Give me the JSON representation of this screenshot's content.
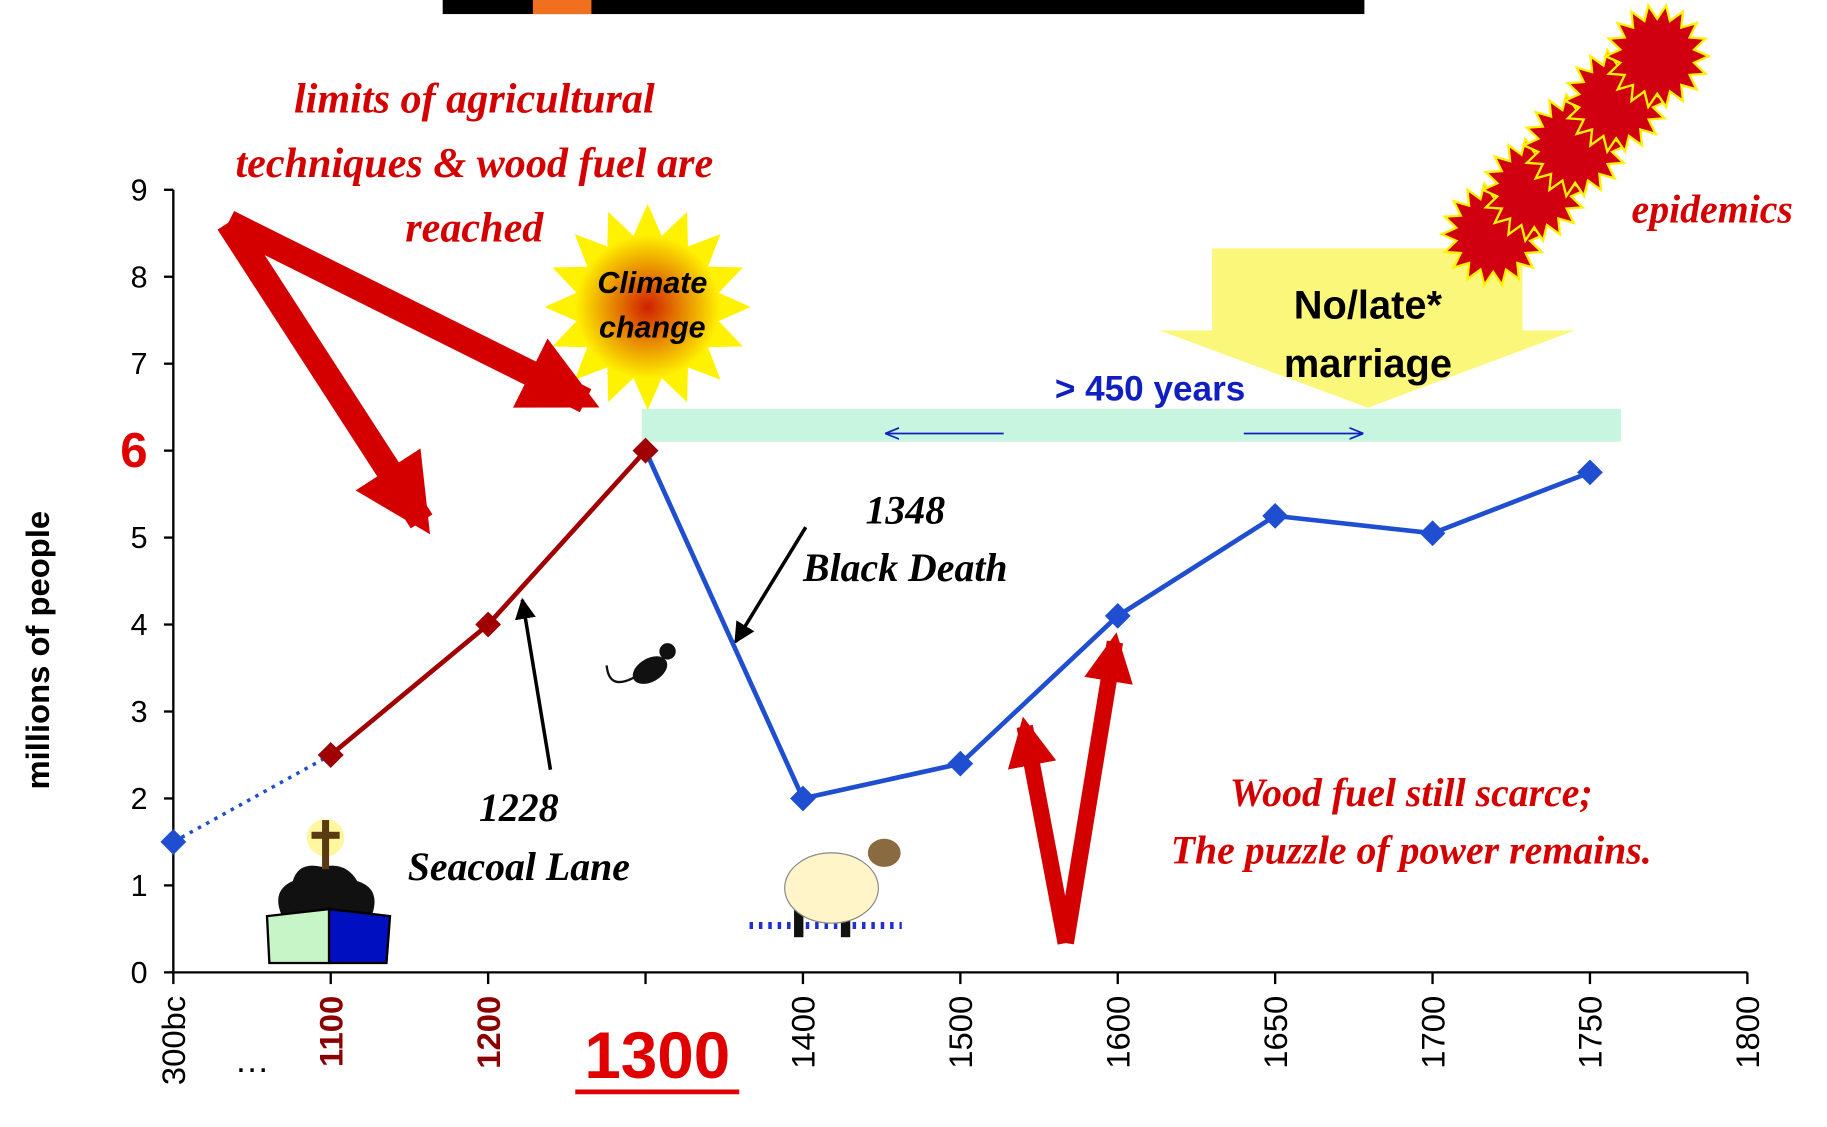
{
  "chart_data": {
    "type": "line",
    "categories": [
      "300bc",
      "1100",
      "1200",
      "1300",
      "1400",
      "1500",
      "1600",
      "1650",
      "1700",
      "1750",
      "1800"
    ],
    "x_gap_label": "…",
    "category_label_colors": [
      "#000000",
      "#8b0000",
      "#8b0000",
      "#e00000",
      "#000000",
      "#000000",
      "#000000",
      "#000000",
      "#000000",
      "#000000",
      "#000000"
    ],
    "series": [
      {
        "color": "#1f4fd0",
        "style": "dotted",
        "values": [
          1.5,
          2.5,
          null,
          null,
          null,
          null,
          null,
          null,
          null,
          null,
          null
        ]
      },
      {
        "color": "#1f4fd0",
        "style": "solid",
        "values": [
          null,
          null,
          null,
          6,
          2,
          2.4,
          4.1,
          5.25,
          5.05,
          5.75,
          null
        ]
      },
      {
        "color": "#a00000",
        "style": "solid",
        "values": [
          null,
          2.5,
          4,
          6,
          null,
          null,
          null,
          null,
          null,
          null,
          null
        ]
      }
    ],
    "y_axis_label": "millions of people",
    "ylim": [
      0,
      9
    ],
    "yticks": [
      0,
      1,
      2,
      3,
      4,
      5,
      6,
      7,
      8,
      9
    ],
    "ytick_colors": [
      "#000000",
      "#000000",
      "#000000",
      "#000000",
      "#000000",
      "#000000",
      "#e00000",
      "#000000",
      "#000000",
      "#000000"
    ],
    "annotations": {
      "limits": [
        "limits of agricultural",
        "techniques & wood  fuel are",
        "reached"
      ],
      "climate": [
        "Climate",
        "change"
      ],
      "marriage": [
        "No/late*",
        "marriage"
      ],
      "span": "> 450 years",
      "epidemics": "epidemics",
      "black_death": [
        "1348",
        "Black Death"
      ],
      "seacoal": [
        "1228",
        "Seacoal Lane"
      ],
      "wood_fuel": [
        "Wood fuel still scarce;",
        "The puzzle of power remains."
      ]
    }
  }
}
